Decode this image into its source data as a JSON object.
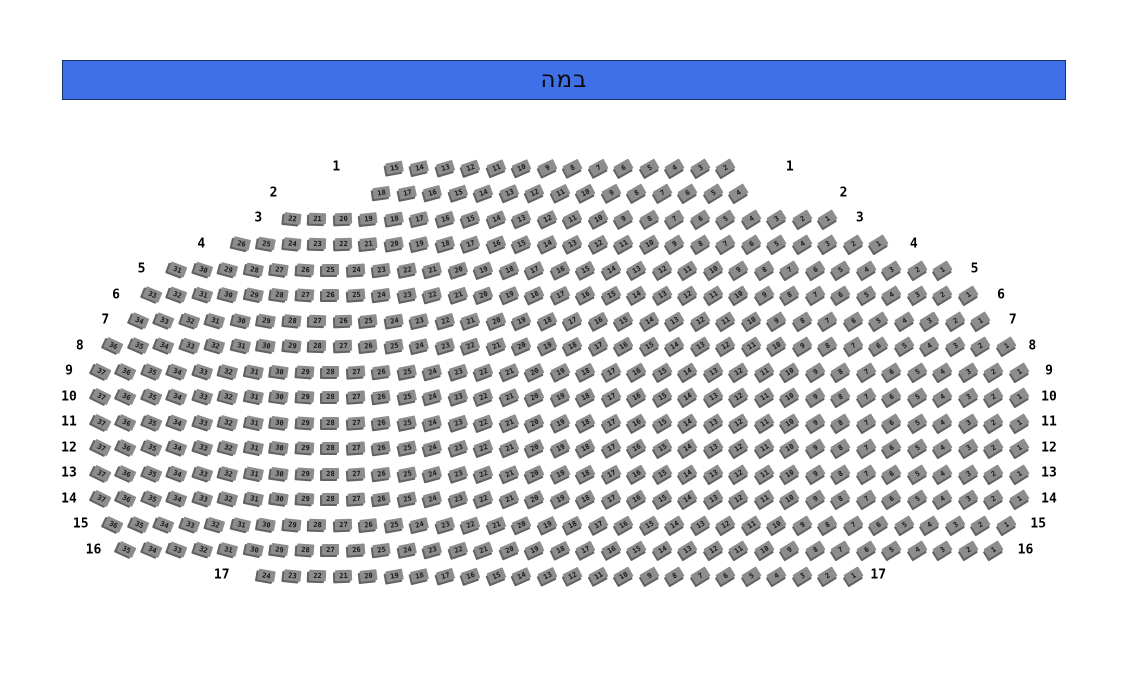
{
  "stage": {
    "label": "במה"
  },
  "colors": {
    "stage_bg": "#4070e8",
    "stage_border": "#16306e",
    "seat_fill": "#8d8d8d",
    "seat_shadow": "#626262",
    "seat_number_text": "#161616",
    "row_label_text": "#000000",
    "background": "#ffffff"
  },
  "rows": [
    {
      "label": "1",
      "first_seat": 15,
      "last_seat": 2,
      "seat_count": 14
    },
    {
      "label": "2",
      "first_seat": 18,
      "last_seat": 4,
      "seat_count": 15
    },
    {
      "label": "3",
      "first_seat": 22,
      "last_seat": 1,
      "seat_count": 22
    },
    {
      "label": "4",
      "first_seat": 26,
      "last_seat": 1,
      "seat_count": 26
    },
    {
      "label": "5",
      "first_seat": 31,
      "last_seat": 1,
      "seat_count": 31
    },
    {
      "label": "6",
      "first_seat": 33,
      "last_seat": 1,
      "seat_count": 33
    },
    {
      "label": "7",
      "first_seat": 34,
      "last_seat": 1,
      "seat_count": 34
    },
    {
      "label": "8",
      "first_seat": 36,
      "last_seat": 1,
      "seat_count": 36
    },
    {
      "label": "9",
      "first_seat": 37,
      "last_seat": 1,
      "seat_count": 37
    },
    {
      "label": "10",
      "first_seat": 37,
      "last_seat": 1,
      "seat_count": 37
    },
    {
      "label": "11",
      "first_seat": 37,
      "last_seat": 1,
      "seat_count": 37
    },
    {
      "label": "12",
      "first_seat": 37,
      "last_seat": 1,
      "seat_count": 37
    },
    {
      "label": "13",
      "first_seat": 37,
      "last_seat": 1,
      "seat_count": 37
    },
    {
      "label": "14",
      "first_seat": 37,
      "last_seat": 1,
      "seat_count": 37
    },
    {
      "label": "15",
      "first_seat": 36,
      "last_seat": 1,
      "seat_count": 36
    },
    {
      "label": "16",
      "first_seat": 35,
      "last_seat": 1,
      "seat_count": 35
    },
    {
      "label": "17",
      "first_seat": 24,
      "last_seat": 1,
      "seat_count": 24
    }
  ]
}
